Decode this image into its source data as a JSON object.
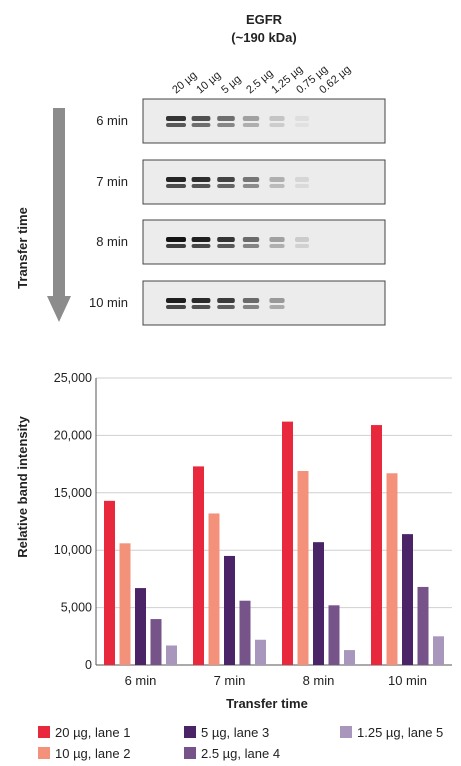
{
  "blot": {
    "title_line1": "EGFR",
    "title_line2": "(~190 kDa)",
    "lane_labels": [
      "20 µg",
      "10 µg",
      "5 µg",
      "2.5 µg",
      "1.25 µg",
      "0.75 µg",
      "0.62 µg"
    ],
    "arrow_label": "Transfer time",
    "panels": [
      {
        "label": "6 min",
        "intensities": [
          0.85,
          0.72,
          0.58,
          0.35,
          0.18,
          0.06,
          0.0
        ]
      },
      {
        "label": "7 min",
        "intensities": [
          0.92,
          0.88,
          0.78,
          0.55,
          0.28,
          0.1,
          0.0
        ]
      },
      {
        "label": "8 min",
        "intensities": [
          1.0,
          0.95,
          0.85,
          0.6,
          0.35,
          0.15,
          0.0
        ]
      },
      {
        "label": "10 min",
        "intensities": [
          0.95,
          0.9,
          0.82,
          0.6,
          0.38,
          0.0,
          0.0
        ]
      }
    ]
  },
  "chart_data": {
    "type": "bar",
    "categories": [
      "6 min",
      "7 min",
      "8 min",
      "10 min"
    ],
    "series": [
      {
        "name": "20 µg, lane 1",
        "color": "#e8283c",
        "values": [
          14300,
          17300,
          21200,
          20900
        ]
      },
      {
        "name": "10 µg, lane 2",
        "color": "#f4917a",
        "values": [
          10600,
          13200,
          16900,
          16700
        ]
      },
      {
        "name": "5 µg, lane 3",
        "color": "#4a2466",
        "values": [
          6700,
          9500,
          10700,
          11400
        ]
      },
      {
        "name": "2.5 µg, lane 4",
        "color": "#765389",
        "values": [
          4000,
          5600,
          5200,
          6800
        ]
      },
      {
        "name": "1.25 µg, lane 5",
        "color": "#a996bd",
        "values": [
          1700,
          2200,
          1300,
          2500
        ]
      }
    ],
    "xlabel": "Transfer time",
    "ylabel": "Relative band intensity",
    "ylim": [
      0,
      25000
    ],
    "yticks": [
      0,
      5000,
      10000,
      15000,
      20000,
      25000
    ],
    "ytick_labels": [
      "0",
      "5,000",
      "10,000",
      "15,000",
      "20,000",
      "25,000"
    ],
    "grid": true,
    "legend_position": "bottom"
  }
}
